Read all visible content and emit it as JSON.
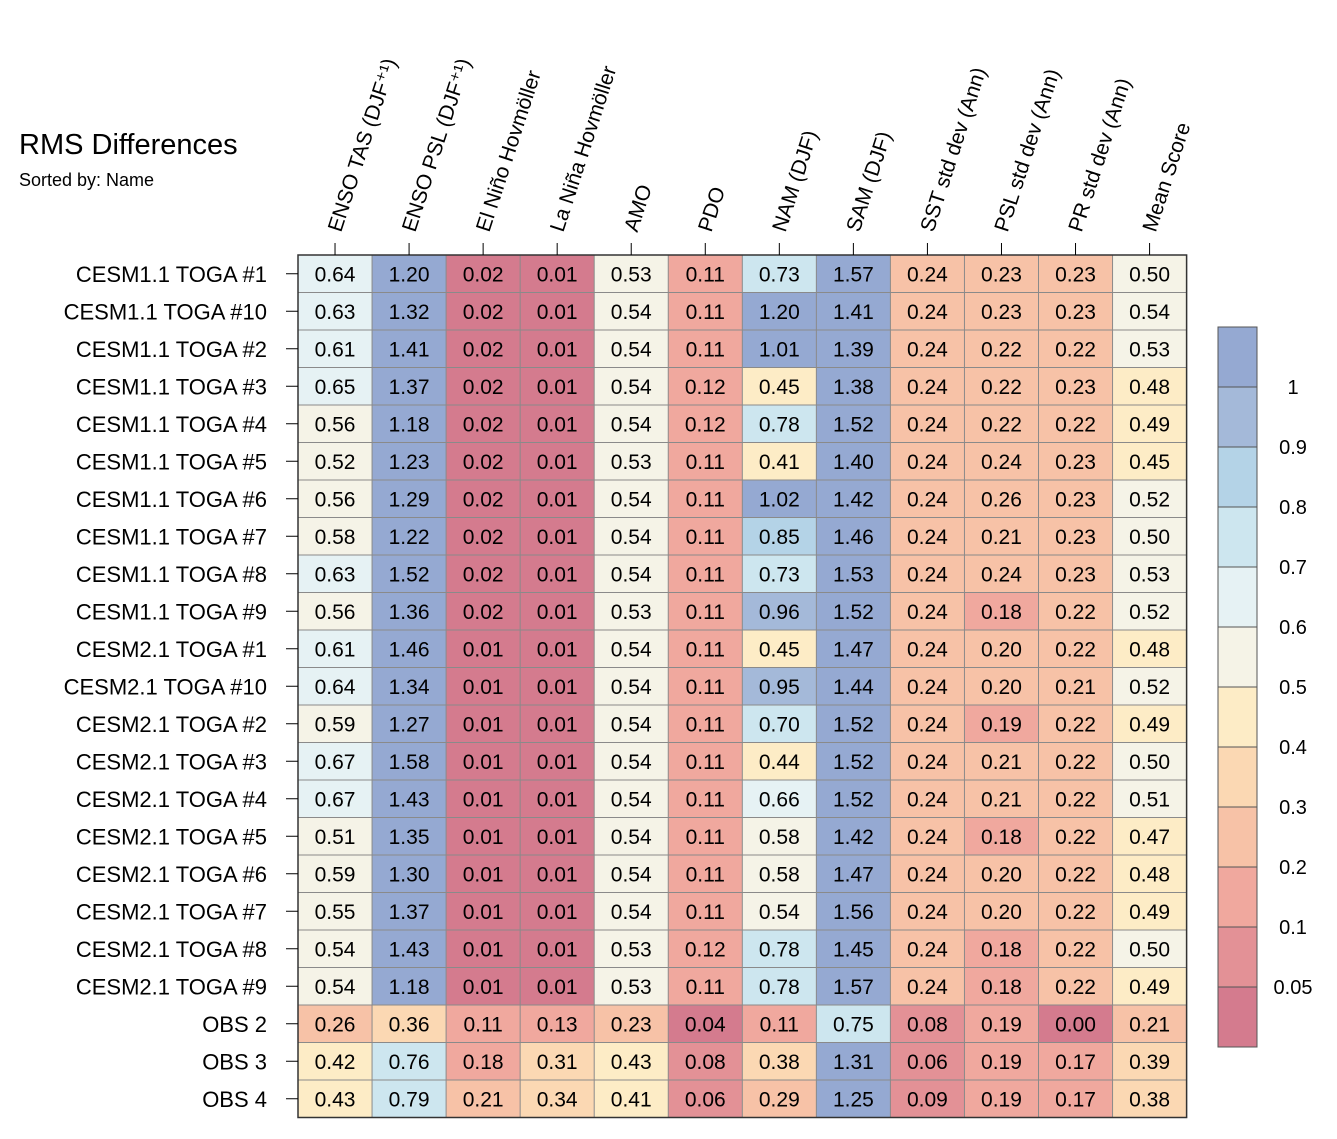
{
  "chart_data": {
    "type": "heatmap",
    "title": "RMS Differences",
    "subtitle": "Sorted by: Name",
    "columns": [
      "ENSO TAS (DJF⁺¹)",
      "ENSO PSL (DJF⁺¹)",
      "El Niño Hovmöller",
      "La Niña Hovmöller",
      "AMO",
      "PDO",
      "NAM (DJF)",
      "SAM (DJF)",
      "SST std dev (Ann)",
      "PSL std dev (Ann)",
      "PR std dev (Ann)",
      "Mean Score"
    ],
    "rows": [
      "CESM1.1 TOGA #1",
      "CESM1.1 TOGA #10",
      "CESM1.1 TOGA #2",
      "CESM1.1 TOGA #3",
      "CESM1.1 TOGA #4",
      "CESM1.1 TOGA #5",
      "CESM1.1 TOGA #6",
      "CESM1.1 TOGA #7",
      "CESM1.1 TOGA #8",
      "CESM1.1 TOGA #9",
      "CESM2.1 TOGA #1",
      "CESM2.1 TOGA #10",
      "CESM2.1 TOGA #2",
      "CESM2.1 TOGA #3",
      "CESM2.1 TOGA #4",
      "CESM2.1 TOGA #5",
      "CESM2.1 TOGA #6",
      "CESM2.1 TOGA #7",
      "CESM2.1 TOGA #8",
      "CESM2.1 TOGA #9",
      "OBS 2",
      "OBS 3",
      "OBS 4"
    ],
    "values": [
      [
        "0.64",
        "1.20",
        "0.02",
        "0.01",
        "0.53",
        "0.11",
        "0.73",
        "1.57",
        "0.24",
        "0.23",
        "0.23",
        "0.50"
      ],
      [
        "0.63",
        "1.32",
        "0.02",
        "0.01",
        "0.54",
        "0.11",
        "1.20",
        "1.41",
        "0.24",
        "0.23",
        "0.23",
        "0.54"
      ],
      [
        "0.61",
        "1.41",
        "0.02",
        "0.01",
        "0.54",
        "0.11",
        "1.01",
        "1.39",
        "0.24",
        "0.22",
        "0.22",
        "0.53"
      ],
      [
        "0.65",
        "1.37",
        "0.02",
        "0.01",
        "0.54",
        "0.12",
        "0.45",
        "1.38",
        "0.24",
        "0.22",
        "0.23",
        "0.48"
      ],
      [
        "0.56",
        "1.18",
        "0.02",
        "0.01",
        "0.54",
        "0.12",
        "0.78",
        "1.52",
        "0.24",
        "0.22",
        "0.22",
        "0.49"
      ],
      [
        "0.52",
        "1.23",
        "0.02",
        "0.01",
        "0.53",
        "0.11",
        "0.41",
        "1.40",
        "0.24",
        "0.24",
        "0.23",
        "0.45"
      ],
      [
        "0.56",
        "1.29",
        "0.02",
        "0.01",
        "0.54",
        "0.11",
        "1.02",
        "1.42",
        "0.24",
        "0.26",
        "0.23",
        "0.52"
      ],
      [
        "0.58",
        "1.22",
        "0.02",
        "0.01",
        "0.54",
        "0.11",
        "0.85",
        "1.46",
        "0.24",
        "0.21",
        "0.23",
        "0.50"
      ],
      [
        "0.63",
        "1.52",
        "0.02",
        "0.01",
        "0.54",
        "0.11",
        "0.73",
        "1.53",
        "0.24",
        "0.24",
        "0.23",
        "0.53"
      ],
      [
        "0.56",
        "1.36",
        "0.02",
        "0.01",
        "0.53",
        "0.11",
        "0.96",
        "1.52",
        "0.24",
        "0.18",
        "0.22",
        "0.52"
      ],
      [
        "0.61",
        "1.46",
        "0.01",
        "0.01",
        "0.54",
        "0.11",
        "0.45",
        "1.47",
        "0.24",
        "0.20",
        "0.22",
        "0.48"
      ],
      [
        "0.64",
        "1.34",
        "0.01",
        "0.01",
        "0.54",
        "0.11",
        "0.95",
        "1.44",
        "0.24",
        "0.20",
        "0.21",
        "0.52"
      ],
      [
        "0.59",
        "1.27",
        "0.01",
        "0.01",
        "0.54",
        "0.11",
        "0.70",
        "1.52",
        "0.24",
        "0.19",
        "0.22",
        "0.49"
      ],
      [
        "0.67",
        "1.58",
        "0.01",
        "0.01",
        "0.54",
        "0.11",
        "0.44",
        "1.52",
        "0.24",
        "0.21",
        "0.22",
        "0.50"
      ],
      [
        "0.67",
        "1.43",
        "0.01",
        "0.01",
        "0.54",
        "0.11",
        "0.66",
        "1.52",
        "0.24",
        "0.21",
        "0.22",
        "0.51"
      ],
      [
        "0.51",
        "1.35",
        "0.01",
        "0.01",
        "0.54",
        "0.11",
        "0.58",
        "1.42",
        "0.24",
        "0.18",
        "0.22",
        "0.47"
      ],
      [
        "0.59",
        "1.30",
        "0.01",
        "0.01",
        "0.54",
        "0.11",
        "0.58",
        "1.47",
        "0.24",
        "0.20",
        "0.22",
        "0.48"
      ],
      [
        "0.55",
        "1.37",
        "0.01",
        "0.01",
        "0.54",
        "0.11",
        "0.54",
        "1.56",
        "0.24",
        "0.20",
        "0.22",
        "0.49"
      ],
      [
        "0.54",
        "1.43",
        "0.01",
        "0.01",
        "0.53",
        "0.12",
        "0.78",
        "1.45",
        "0.24",
        "0.18",
        "0.22",
        "0.50"
      ],
      [
        "0.54",
        "1.18",
        "0.01",
        "0.01",
        "0.53",
        "0.11",
        "0.78",
        "1.57",
        "0.24",
        "0.18",
        "0.22",
        "0.49"
      ],
      [
        "0.26",
        "0.36",
        "0.11",
        "0.13",
        "0.23",
        "0.04",
        "0.11",
        "0.75",
        "0.08",
        "0.19",
        "0.00",
        "0.21"
      ],
      [
        "0.42",
        "0.76",
        "0.18",
        "0.31",
        "0.43",
        "0.08",
        "0.38",
        "1.31",
        "0.06",
        "0.19",
        "0.17",
        "0.39"
      ],
      [
        "0.43",
        "0.79",
        "0.21",
        "0.34",
        "0.41",
        "0.06",
        "0.29",
        "1.25",
        "0.09",
        "0.19",
        "0.17",
        "0.38"
      ]
    ],
    "colorbar": {
      "levels": [
        0.05,
        0.1,
        0.2,
        0.3,
        0.4,
        0.5,
        0.6,
        0.7,
        0.8,
        0.9,
        1
      ],
      "tick_labels": [
        "0.05",
        "0.1",
        "0.2",
        "0.3",
        "0.4",
        "0.5",
        "0.6",
        "0.7",
        "0.8",
        "0.9",
        "1"
      ],
      "colors": [
        "#d47b8e",
        "#e39196",
        "#f0a89e",
        "#f7c2a7",
        "#fbd8b3",
        "#fdecc6",
        "#f5f3e7",
        "#e6f2f4",
        "#cde6ef",
        "#b4d3e7",
        "#a4b9d9",
        "#95a9d2"
      ]
    }
  }
}
